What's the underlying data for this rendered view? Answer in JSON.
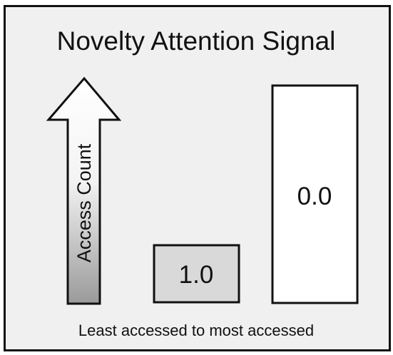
{
  "title": "Novelty Attention Signal",
  "arrow": {
    "label": "Access Count",
    "icon": "up-arrow-icon"
  },
  "bars": [
    {
      "value": 1.0,
      "label": "1.0",
      "fill": "#d9d9d9"
    },
    {
      "value": 0.0,
      "label": "0.0",
      "fill": "#ffffff"
    }
  ],
  "caption": "Least accessed to most accessed",
  "colors": {
    "frame_bg": "#f0f0f0",
    "stroke": "#111111"
  }
}
